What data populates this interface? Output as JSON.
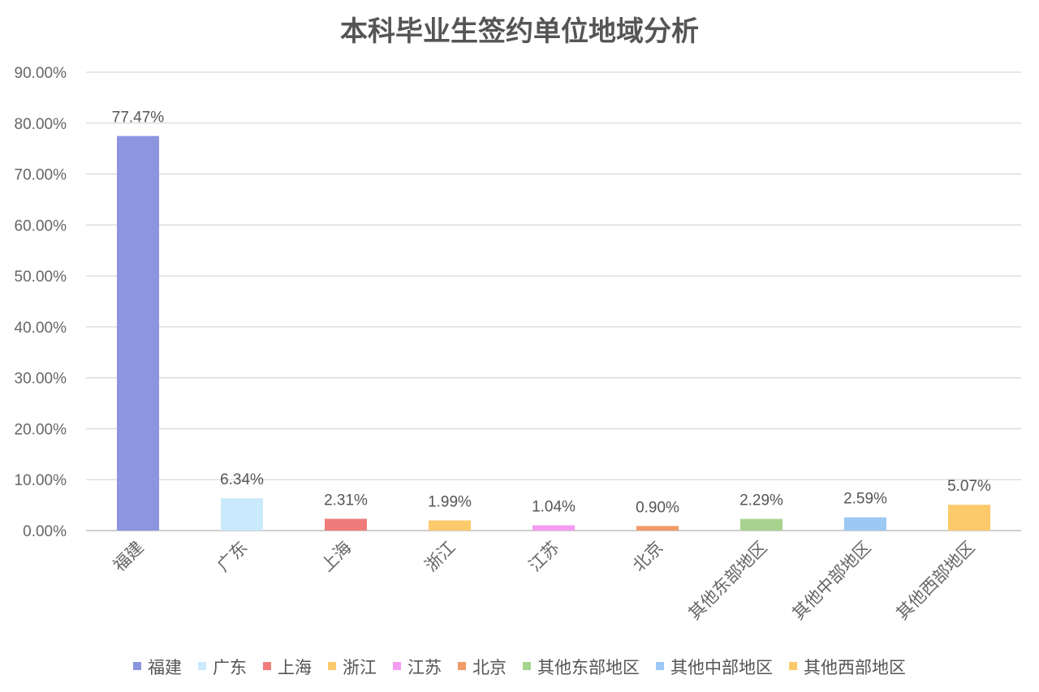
{
  "chart_data": {
    "type": "bar",
    "title": "本科毕业生签约单位地域分析",
    "xlabel": "",
    "ylabel": "",
    "ylim": [
      0,
      90
    ],
    "yticks": [
      "0.00%",
      "10.00%",
      "20.00%",
      "30.00%",
      "40.00%",
      "50.00%",
      "60.00%",
      "70.00%",
      "80.00%",
      "90.00%"
    ],
    "grid": true,
    "legend_position": "bottom",
    "categories": [
      "福建",
      "广东",
      "上海",
      "浙江",
      "江苏",
      "北京",
      "其他东部地区",
      "其他中部地区",
      "其他西部地区"
    ],
    "values": [
      77.47,
      6.34,
      2.31,
      1.99,
      1.04,
      0.9,
      2.29,
      2.59,
      5.07
    ],
    "value_labels": [
      "77.47%",
      "6.34%",
      "2.31%",
      "1.99%",
      "1.04%",
      "0.90%",
      "2.29%",
      "2.59%",
      "5.07%"
    ],
    "colors": [
      "#8d95e0",
      "#c9eafc",
      "#f07b7b",
      "#fcca6a",
      "#f49cf0",
      "#f29a6a",
      "#a7d38f",
      "#9cc8f4",
      "#fcca6a"
    ]
  }
}
